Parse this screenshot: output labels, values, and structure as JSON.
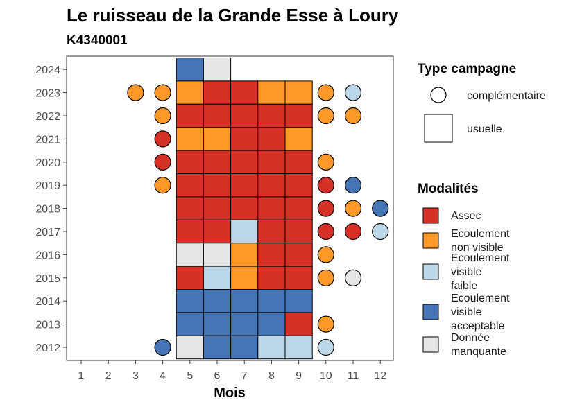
{
  "chart_data": {
    "type": "heatmap",
    "title": "Le ruisseau de la Grande Esse à Loury",
    "subtitle": "K4340001",
    "xlabel": "Mois",
    "ylabel": "",
    "x_ticks": [
      "1",
      "2",
      "3",
      "4",
      "5",
      "6",
      "7",
      "8",
      "9",
      "10",
      "11",
      "12"
    ],
    "y_ticks": [
      "2012",
      "2013",
      "2014",
      "2015",
      "2016",
      "2017",
      "2018",
      "2019",
      "2020",
      "2021",
      "2022",
      "2023",
      "2024"
    ],
    "grid": false,
    "legend_placement": "right",
    "colors": {
      "Assec": "#d73027",
      "Ecoulement non visible": "#fe9929",
      "Ecoulement visible faible": "#bcd7e8",
      "Ecoulement visible acceptable": "#4575b4",
      "Donnée manquante": "#e5e5e5"
    },
    "legend_campaign": {
      "title": "Type campagne",
      "items": [
        {
          "shape": "circle",
          "label": "complémentaire"
        },
        {
          "shape": "square",
          "label": "usuelle"
        }
      ]
    },
    "legend_modalites": {
      "title": "Modalités",
      "items": [
        {
          "key": "Assec",
          "lines": [
            "Assec"
          ]
        },
        {
          "key": "Ecoulement non visible",
          "lines": [
            "Ecoulement",
            "non visible"
          ]
        },
        {
          "key": "Ecoulement visible faible",
          "lines": [
            "Ecoulement",
            "visible",
            "faible"
          ]
        },
        {
          "key": "Ecoulement visible acceptable",
          "lines": [
            "Ecoulement",
            "visible",
            "acceptable"
          ]
        },
        {
          "key": "Donnée manquante",
          "lines": [
            "Donnée",
            "manquante"
          ]
        }
      ]
    },
    "usual": [
      {
        "year": 2024,
        "month": 5,
        "status": "Ecoulement visible acceptable"
      },
      {
        "year": 2024,
        "month": 6,
        "status": "Donnée manquante"
      },
      {
        "year": 2023,
        "month": 5,
        "status": "Ecoulement non visible"
      },
      {
        "year": 2023,
        "month": 6,
        "status": "Assec"
      },
      {
        "year": 2023,
        "month": 7,
        "status": "Assec"
      },
      {
        "year": 2023,
        "month": 8,
        "status": "Ecoulement non visible"
      },
      {
        "year": 2023,
        "month": 9,
        "status": "Ecoulement non visible"
      },
      {
        "year": 2022,
        "month": 5,
        "status": "Assec"
      },
      {
        "year": 2022,
        "month": 6,
        "status": "Assec"
      },
      {
        "year": 2022,
        "month": 7,
        "status": "Assec"
      },
      {
        "year": 2022,
        "month": 8,
        "status": "Assec"
      },
      {
        "year": 2022,
        "month": 9,
        "status": "Assec"
      },
      {
        "year": 2021,
        "month": 5,
        "status": "Ecoulement non visible"
      },
      {
        "year": 2021,
        "month": 6,
        "status": "Ecoulement non visible"
      },
      {
        "year": 2021,
        "month": 7,
        "status": "Assec"
      },
      {
        "year": 2021,
        "month": 8,
        "status": "Assec"
      },
      {
        "year": 2021,
        "month": 9,
        "status": "Ecoulement non visible"
      },
      {
        "year": 2020,
        "month": 5,
        "status": "Assec"
      },
      {
        "year": 2020,
        "month": 6,
        "status": "Assec"
      },
      {
        "year": 2020,
        "month": 7,
        "status": "Assec"
      },
      {
        "year": 2020,
        "month": 8,
        "status": "Assec"
      },
      {
        "year": 2020,
        "month": 9,
        "status": "Assec"
      },
      {
        "year": 2019,
        "month": 5,
        "status": "Assec"
      },
      {
        "year": 2019,
        "month": 6,
        "status": "Assec"
      },
      {
        "year": 2019,
        "month": 7,
        "status": "Assec"
      },
      {
        "year": 2019,
        "month": 8,
        "status": "Assec"
      },
      {
        "year": 2019,
        "month": 9,
        "status": "Assec"
      },
      {
        "year": 2018,
        "month": 5,
        "status": "Assec"
      },
      {
        "year": 2018,
        "month": 6,
        "status": "Assec"
      },
      {
        "year": 2018,
        "month": 7,
        "status": "Assec"
      },
      {
        "year": 2018,
        "month": 8,
        "status": "Assec"
      },
      {
        "year": 2018,
        "month": 9,
        "status": "Assec"
      },
      {
        "year": 2017,
        "month": 5,
        "status": "Assec"
      },
      {
        "year": 2017,
        "month": 6,
        "status": "Assec"
      },
      {
        "year": 2017,
        "month": 7,
        "status": "Ecoulement visible faible"
      },
      {
        "year": 2017,
        "month": 8,
        "status": "Assec"
      },
      {
        "year": 2017,
        "month": 9,
        "status": "Assec"
      },
      {
        "year": 2016,
        "month": 5,
        "status": "Donnée manquante"
      },
      {
        "year": 2016,
        "month": 6,
        "status": "Donnée manquante"
      },
      {
        "year": 2016,
        "month": 7,
        "status": "Ecoulement non visible"
      },
      {
        "year": 2016,
        "month": 8,
        "status": "Assec"
      },
      {
        "year": 2016,
        "month": 9,
        "status": "Assec"
      },
      {
        "year": 2015,
        "month": 5,
        "status": "Assec"
      },
      {
        "year": 2015,
        "month": 6,
        "status": "Ecoulement visible faible"
      },
      {
        "year": 2015,
        "month": 7,
        "status": "Ecoulement non visible"
      },
      {
        "year": 2015,
        "month": 8,
        "status": "Assec"
      },
      {
        "year": 2015,
        "month": 9,
        "status": "Assec"
      },
      {
        "year": 2014,
        "month": 5,
        "status": "Ecoulement visible acceptable"
      },
      {
        "year": 2014,
        "month": 6,
        "status": "Ecoulement visible acceptable"
      },
      {
        "year": 2014,
        "month": 7,
        "status": "Ecoulement visible acceptable"
      },
      {
        "year": 2014,
        "month": 8,
        "status": "Ecoulement visible acceptable"
      },
      {
        "year": 2014,
        "month": 9,
        "status": "Ecoulement visible acceptable"
      },
      {
        "year": 2013,
        "month": 5,
        "status": "Ecoulement visible acceptable"
      },
      {
        "year": 2013,
        "month": 6,
        "status": "Ecoulement visible acceptable"
      },
      {
        "year": 2013,
        "month": 7,
        "status": "Ecoulement visible acceptable"
      },
      {
        "year": 2013,
        "month": 8,
        "status": "Ecoulement visible acceptable"
      },
      {
        "year": 2013,
        "month": 9,
        "status": "Assec"
      },
      {
        "year": 2012,
        "month": 5,
        "status": "Donnée manquante"
      },
      {
        "year": 2012,
        "month": 6,
        "status": "Ecoulement visible acceptable"
      },
      {
        "year": 2012,
        "month": 7,
        "status": "Ecoulement visible acceptable"
      },
      {
        "year": 2012,
        "month": 8,
        "status": "Ecoulement visible faible"
      },
      {
        "year": 2012,
        "month": 9,
        "status": "Ecoulement visible faible"
      }
    ],
    "complementary": [
      {
        "year": 2023,
        "month": 3,
        "status": "Ecoulement non visible"
      },
      {
        "year": 2023,
        "month": 4,
        "status": "Ecoulement non visible"
      },
      {
        "year": 2023,
        "month": 10,
        "status": "Ecoulement non visible"
      },
      {
        "year": 2023,
        "month": 11,
        "status": "Ecoulement visible faible"
      },
      {
        "year": 2022,
        "month": 4,
        "status": "Ecoulement non visible"
      },
      {
        "year": 2022,
        "month": 10,
        "status": "Ecoulement non visible"
      },
      {
        "year": 2022,
        "month": 11,
        "status": "Ecoulement non visible"
      },
      {
        "year": 2021,
        "month": 4,
        "status": "Assec"
      },
      {
        "year": 2020,
        "month": 4,
        "status": "Assec"
      },
      {
        "year": 2020,
        "month": 10,
        "status": "Ecoulement non visible"
      },
      {
        "year": 2019,
        "month": 4,
        "status": "Ecoulement non visible"
      },
      {
        "year": 2019,
        "month": 10,
        "status": "Assec"
      },
      {
        "year": 2019,
        "month": 11,
        "status": "Ecoulement visible acceptable"
      },
      {
        "year": 2018,
        "month": 10,
        "status": "Assec"
      },
      {
        "year": 2018,
        "month": 11,
        "status": "Ecoulement non visible"
      },
      {
        "year": 2018,
        "month": 12,
        "status": "Ecoulement visible acceptable"
      },
      {
        "year": 2017,
        "month": 10,
        "status": "Assec"
      },
      {
        "year": 2017,
        "month": 11,
        "status": "Assec"
      },
      {
        "year": 2017,
        "month": 12,
        "status": "Ecoulement visible faible"
      },
      {
        "year": 2016,
        "month": 10,
        "status": "Ecoulement non visible"
      },
      {
        "year": 2015,
        "month": 10,
        "status": "Ecoulement non visible"
      },
      {
        "year": 2015,
        "month": 11,
        "status": "Donnée manquante"
      },
      {
        "year": 2013,
        "month": 10,
        "status": "Ecoulement non visible"
      },
      {
        "year": 2012,
        "month": 4,
        "status": "Ecoulement visible acceptable"
      },
      {
        "year": 2012,
        "month": 10,
        "status": "Ecoulement visible faible"
      }
    ]
  }
}
